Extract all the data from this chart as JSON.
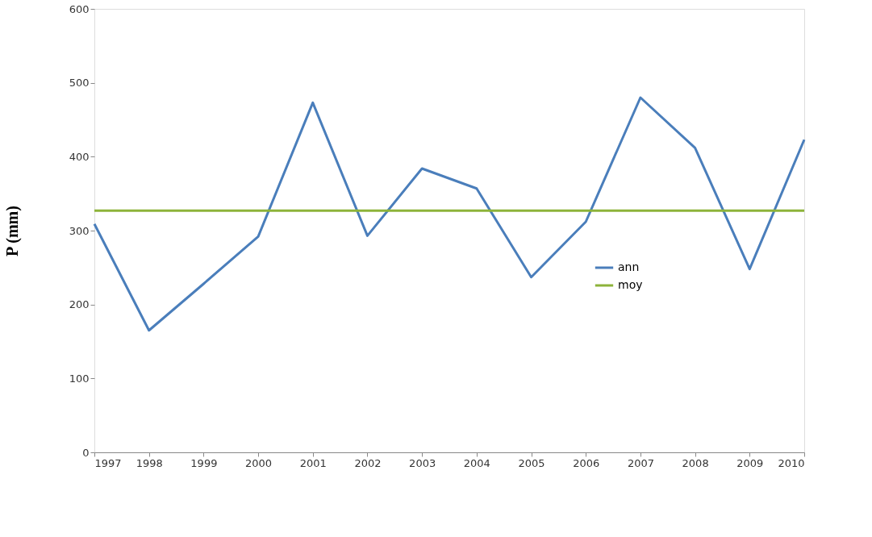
{
  "chart_data": {
    "type": "line",
    "ylabel": "P (mm)",
    "categories": [
      "1997",
      "1998",
      "1999",
      "2000",
      "2001",
      "2002",
      "2003",
      "2004",
      "2005",
      "2006",
      "2007",
      "2008",
      "2009",
      "2010"
    ],
    "series": [
      {
        "name": "ann",
        "color": "#4a7ebb",
        "values": [
          309,
          165,
          228,
          292,
          473,
          293,
          384,
          357,
          237,
          312,
          480,
          412,
          248,
          423
        ]
      },
      {
        "name": "moy",
        "color": "#8db33a",
        "values": [
          327,
          327,
          327,
          327,
          327,
          327,
          327,
          327,
          327,
          327,
          327,
          327,
          327,
          327
        ]
      }
    ],
    "ylim": [
      0,
      600
    ],
    "yticks": [
      0,
      100,
      200,
      300,
      400,
      500,
      600
    ],
    "grid": false,
    "legend": "bottom right",
    "marker": "none",
    "line_style": "solid"
  }
}
